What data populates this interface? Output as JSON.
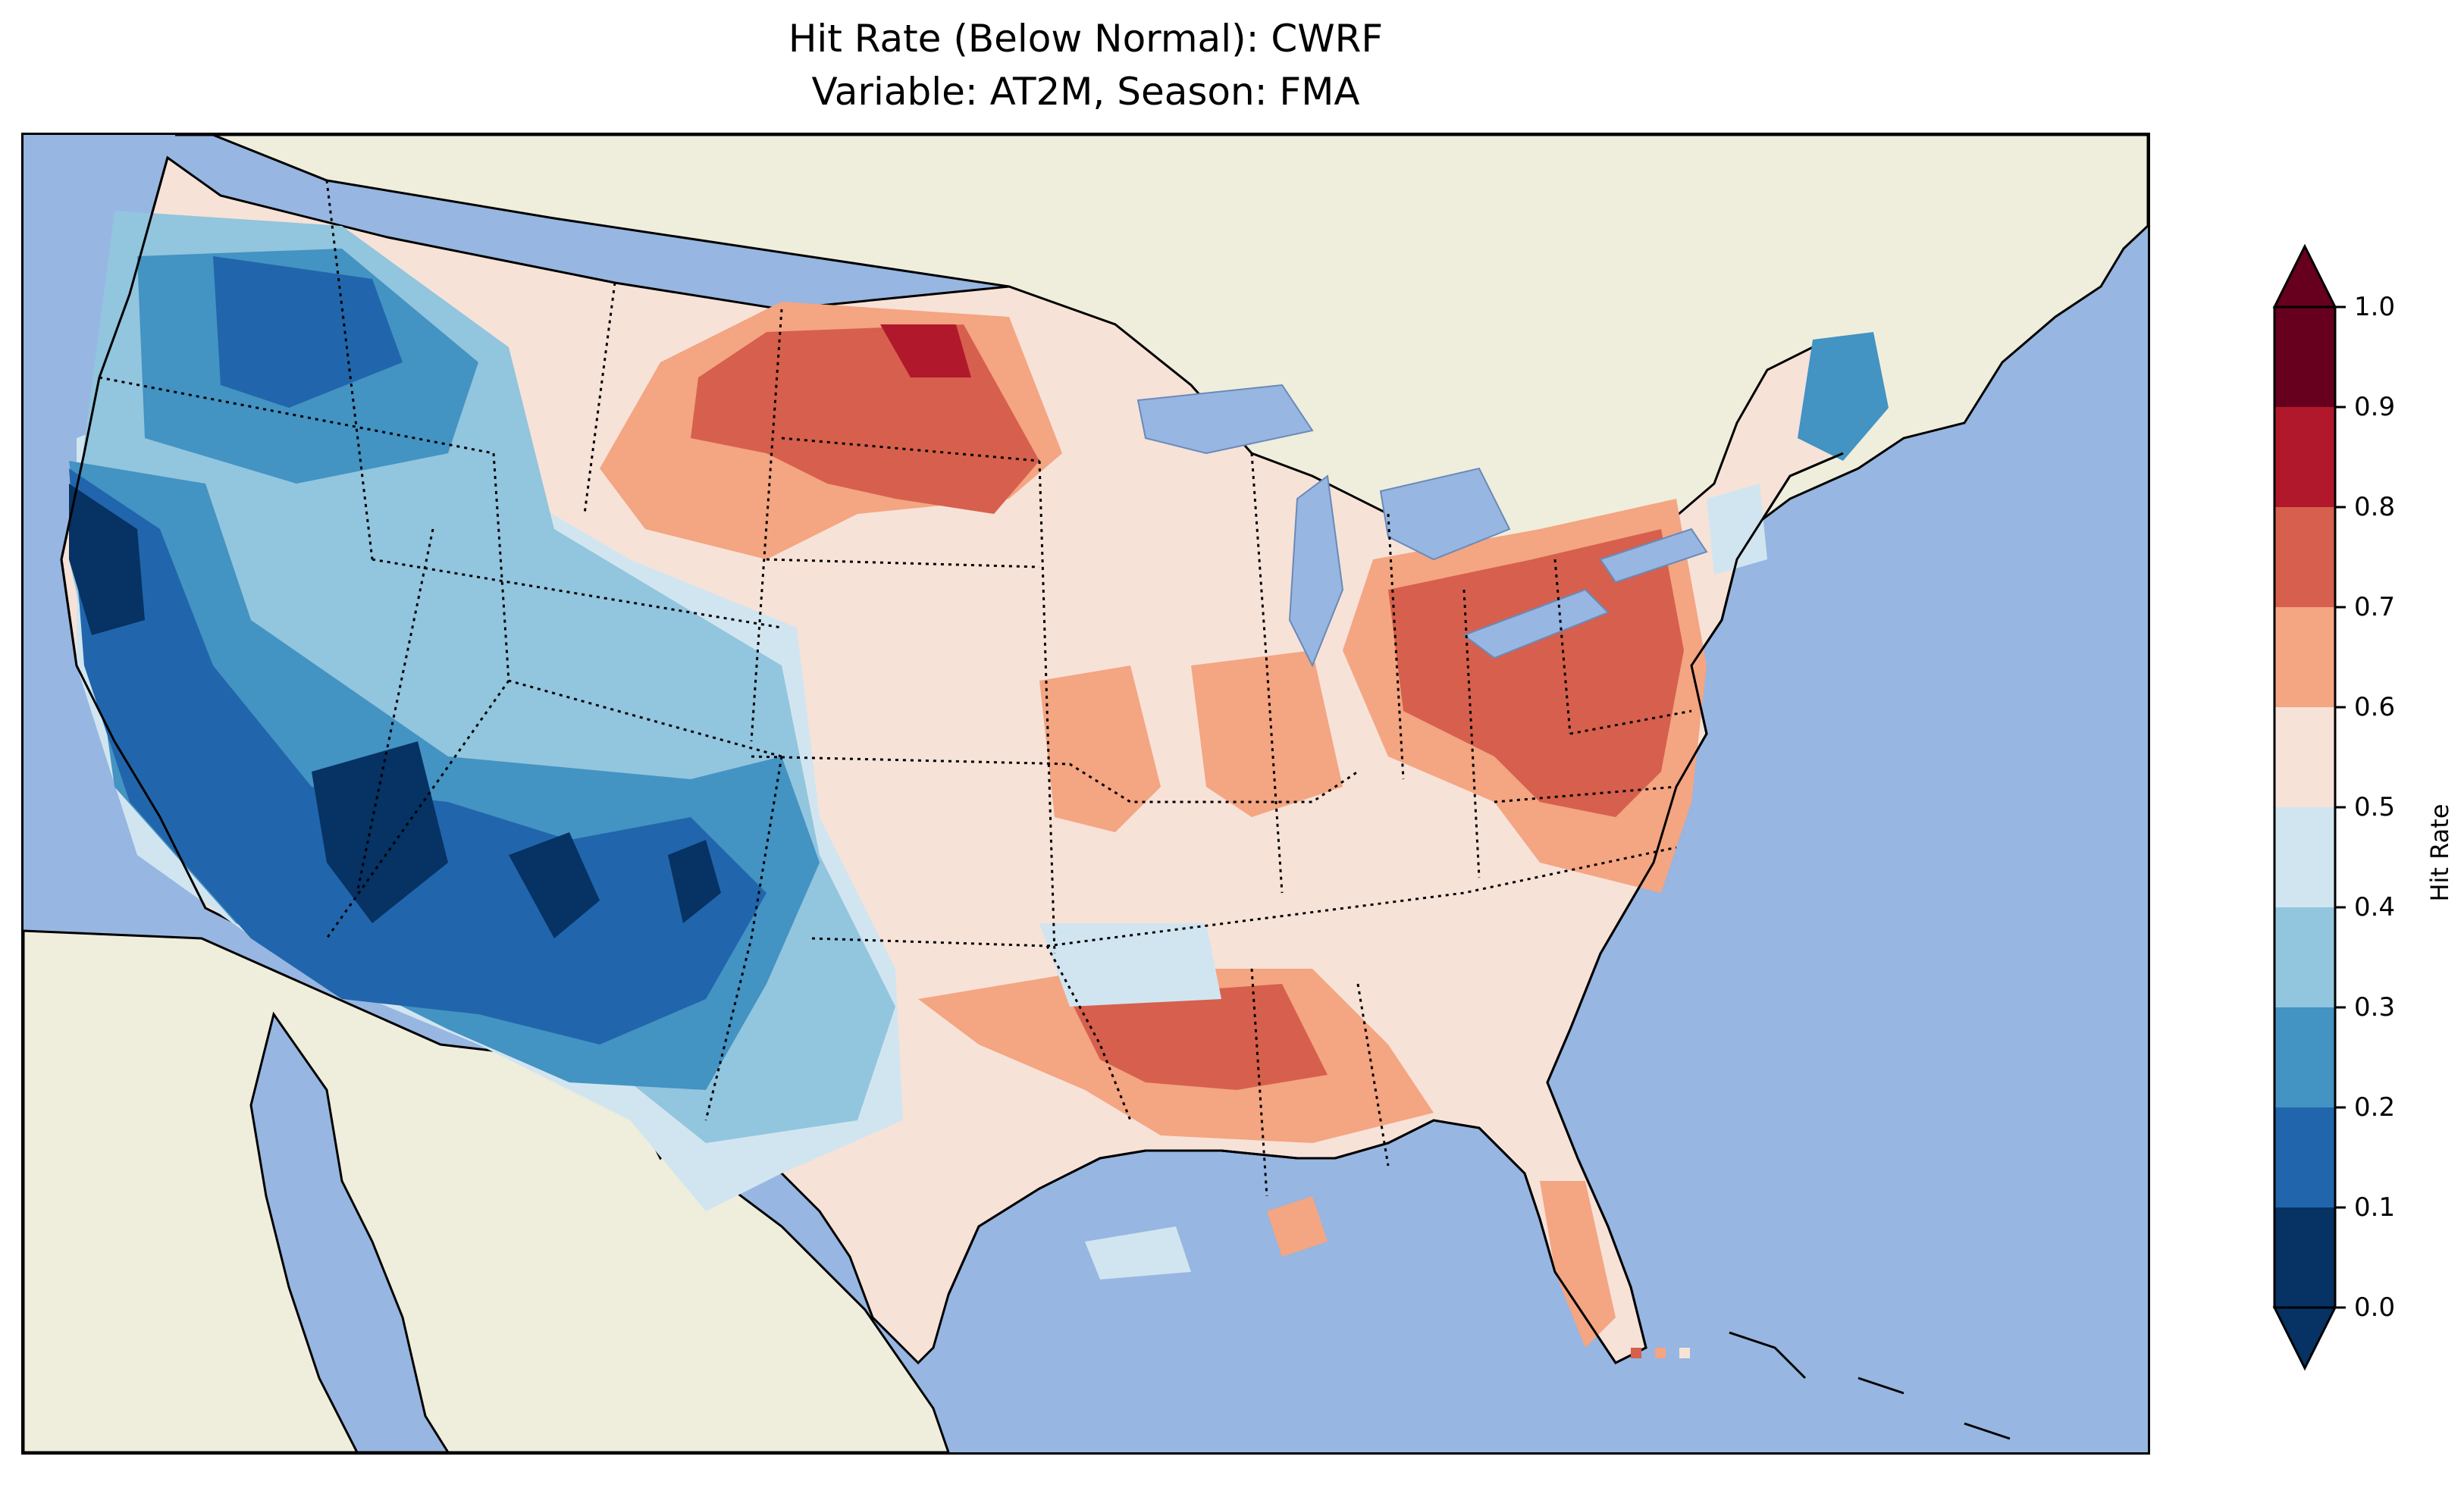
{
  "title": {
    "line1": "Hit Rate (Below Normal): CWRF",
    "line2": "Variable: AT2M, Season: FMA"
  },
  "map": {
    "region": "Contiguous United States",
    "land_color": "#efeedc",
    "ocean_color": "#97b6e1",
    "lake_color": "#97b6e1",
    "borders": "dotted state boundaries, solid coastlines"
  },
  "colorbar": {
    "label": "Hit Rate",
    "ticks": [
      "0.0",
      "0.1",
      "0.2",
      "0.3",
      "0.4",
      "0.5",
      "0.6",
      "0.7",
      "0.8",
      "0.9",
      "1.0"
    ],
    "extend": "both",
    "colors": [
      "#063264",
      "#2166ac",
      "#4393c3",
      "#92c5de",
      "#d1e5f0",
      "#f7e2d8",
      "#f4a582",
      "#d6604d",
      "#b2182b",
      "#67001f"
    ],
    "colormap": "RdBu_r"
  },
  "chart_data": {
    "type": "heatmap",
    "title": "Hit Rate (Below Normal): CWRF",
    "subtitle": "Variable: AT2M, Season: FMA",
    "colorbar_label": "Hit Rate",
    "value_range": [
      0.0,
      1.0
    ],
    "bin_width": 0.1,
    "regions": [
      {
        "region": "Northern California coast",
        "bin": [
          0.0,
          0.1
        ]
      },
      {
        "region": "Northwest Washington",
        "bin": [
          0.1,
          0.2
        ]
      },
      {
        "region": "California / Nevada / Arizona",
        "bin": [
          0.1,
          0.2
        ]
      },
      {
        "region": "Utah / Arizona / New Mexico",
        "bin": [
          0.0,
          0.2
        ]
      },
      {
        "region": "Colorado / West Texas",
        "bin": [
          0.2,
          0.4
        ]
      },
      {
        "region": "Idaho / Montana west",
        "bin": [
          0.3,
          0.5
        ]
      },
      {
        "region": "Central Plains / Midwest",
        "bin": [
          0.5,
          0.6
        ]
      },
      {
        "region": "North Dakota / South Dakota",
        "bin": [
          0.7,
          0.8
        ]
      },
      {
        "region": "North Dakota north-central",
        "bin": [
          0.8,
          0.9
        ]
      },
      {
        "region": "Ohio / Pennsylvania / West Virginia / Virginia",
        "bin": [
          0.7,
          0.8
        ]
      },
      {
        "region": "Arkansas / Mississippi",
        "bin": [
          0.7,
          0.8
        ]
      },
      {
        "region": "Maine",
        "bin": [
          0.2,
          0.3
        ]
      },
      {
        "region": "Florida peninsula",
        "bin": [
          0.6,
          0.7
        ]
      }
    ]
  }
}
